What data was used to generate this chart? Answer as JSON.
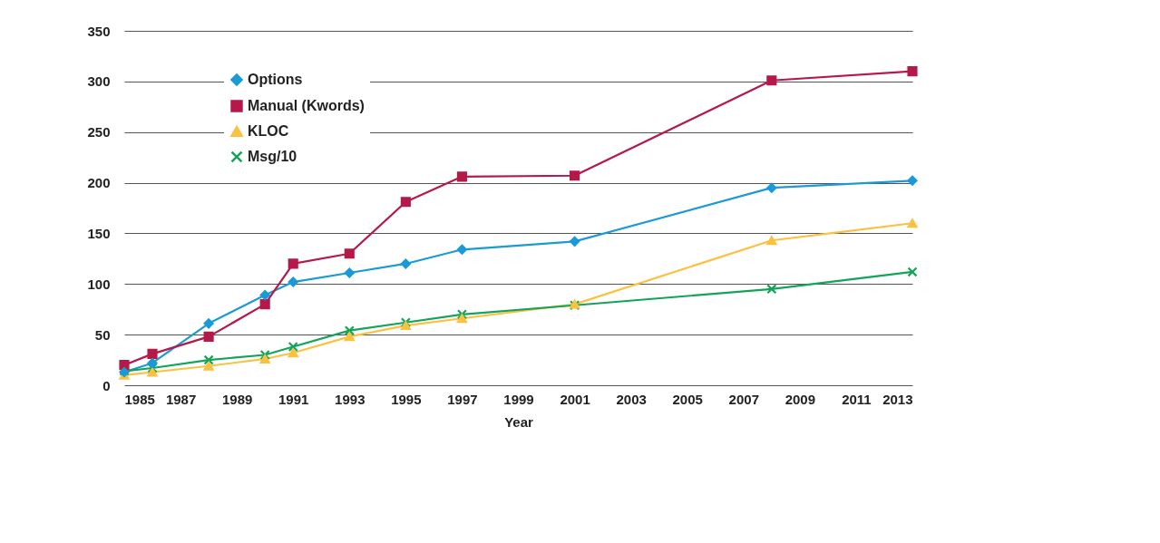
{
  "chart_data": {
    "type": "line",
    "xlabel": "Year",
    "x": [
      1985,
      1986,
      1988,
      1990,
      1991,
      1993,
      1995,
      1997,
      2001,
      2008,
      2013
    ],
    "series": [
      {
        "name": "Options",
        "color": "#1a9ad6",
        "marker": "diamond",
        "values": [
          13,
          22,
          61,
          89,
          102,
          111,
          120,
          134,
          142,
          195,
          202
        ]
      },
      {
        "name": "Manual (Kwords)",
        "color": "#b5194a",
        "marker": "square",
        "values": [
          20,
          31,
          48,
          80,
          120,
          130,
          181,
          206,
          207,
          301,
          310
        ]
      },
      {
        "name": "KLOC",
        "color": "#fbc140",
        "marker": "triangle",
        "values": [
          10,
          13,
          19,
          26,
          32,
          48,
          59,
          66,
          80,
          143,
          160
        ]
      },
      {
        "name": "Msg/10",
        "color": "#13a45a",
        "marker": "cross",
        "values": [
          14,
          17,
          25,
          30,
          38,
          54,
          62,
          70,
          79,
          95,
          112
        ]
      }
    ],
    "xlim": [
      1985,
      2013
    ],
    "xticks": [
      1985,
      1987,
      1989,
      1991,
      1993,
      1995,
      1997,
      1999,
      2001,
      2003,
      2005,
      2007,
      2009,
      2011,
      2013
    ],
    "ylim": [
      0,
      350
    ],
    "yticks": [
      0,
      50,
      100,
      150,
      200,
      250,
      300,
      350
    ],
    "grid": "y",
    "legend": "top left",
    "line_style": "solid"
  }
}
